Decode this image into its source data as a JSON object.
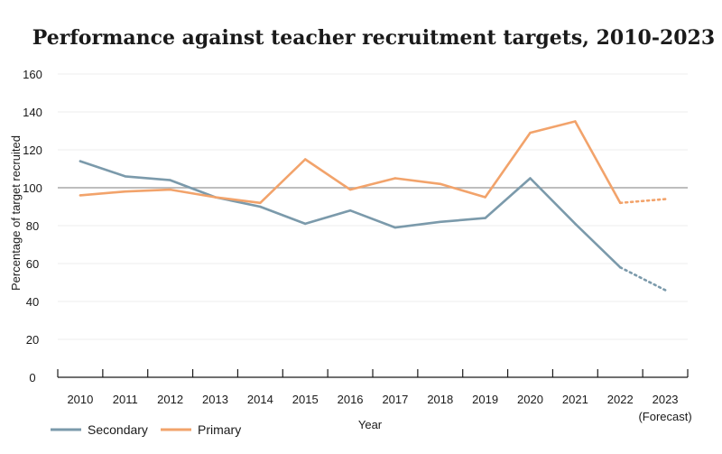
{
  "chart_data": {
    "type": "line",
    "title": "Performance against teacher recruitment targets, 2010-2023",
    "xlabel": "Year",
    "ylabel": "Percentage of target recruited",
    "ylim": [
      0,
      160
    ],
    "yticks": [
      0,
      20,
      40,
      60,
      80,
      100,
      120,
      140,
      160
    ],
    "categories": [
      "2010",
      "2011",
      "2012",
      "2013",
      "2014",
      "2015",
      "2016",
      "2017",
      "2018",
      "2019",
      "2020",
      "2021",
      "2022",
      "2023"
    ],
    "forecast_note": "(Forecast)",
    "reference_line": 100,
    "grid": "horizontal",
    "legend_position": "bottom-left",
    "series": [
      {
        "name": "Secondary",
        "color": "#7b9aab",
        "values": [
          114,
          106,
          104,
          95,
          90,
          81,
          88,
          79,
          82,
          84,
          105,
          81,
          58,
          46
        ],
        "forecast_from_index": 12
      },
      {
        "name": "Primary",
        "color": "#f2a36b",
        "values": [
          96,
          98,
          99,
          95,
          92,
          115,
          99,
          105,
          102,
          95,
          129,
          135,
          92,
          94
        ],
        "forecast_from_index": 12
      }
    ]
  }
}
